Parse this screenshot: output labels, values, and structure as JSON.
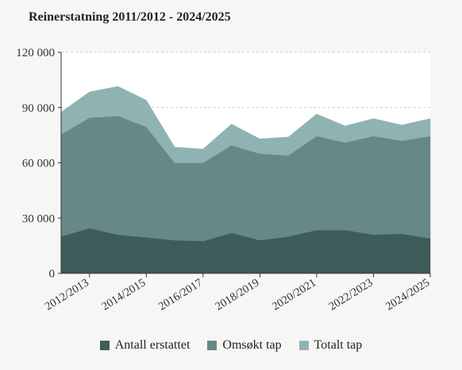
{
  "chart_data": {
    "type": "area",
    "title": "Reinerstatning 2011/2012 - 2024/2025",
    "xlabel": "",
    "ylabel": "",
    "stacked": true,
    "ylim": [
      0,
      120000
    ],
    "yticks": [
      0,
      30000,
      60000,
      90000,
      120000
    ],
    "ytick_labels": [
      "0",
      "30 000",
      "60 000",
      "90 000",
      "120 000"
    ],
    "grid": true,
    "legend_position": "bottom",
    "categories": [
      "2011/2012",
      "2012/2013",
      "2013/2014",
      "2014/2015",
      "2015/2016",
      "2016/2017",
      "2017/2018",
      "2018/2019",
      "2019/2020",
      "2020/2021",
      "2021/2022",
      "2022/2023",
      "2023/2024",
      "2024/2025"
    ],
    "xtick_labels": [
      "2012/2013",
      "2014/2015",
      "2016/2017",
      "2018/2019",
      "2020/2021",
      "2022/2023",
      "2024/2025"
    ],
    "series": [
      {
        "name": "Antall erstattet",
        "color": "#3d5c5a",
        "values": [
          20000,
          24500,
          21000,
          19500,
          18000,
          17500,
          22000,
          18000,
          20000,
          23500,
          23500,
          21000,
          21500,
          19000
        ]
      },
      {
        "name": "Omsøkt tap",
        "color": "#668886",
        "values": [
          55500,
          60000,
          64500,
          60000,
          42000,
          42500,
          47500,
          47000,
          44000,
          51000,
          47500,
          53500,
          50500,
          55500
        ]
      },
      {
        "name": "Totalt tap",
        "color": "#8eb3b2",
        "values": [
          12000,
          14000,
          16000,
          14500,
          8500,
          7500,
          11500,
          8000,
          10000,
          12000,
          9000,
          9500,
          8500,
          9500
        ]
      }
    ]
  }
}
